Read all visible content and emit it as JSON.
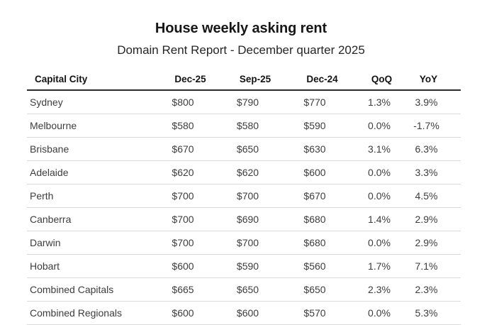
{
  "header": {
    "title": "House weekly asking rent",
    "subtitle": "Domain Rent Report - December quarter 2025"
  },
  "colors": {
    "background": "#ffffff",
    "title_text": "#161616",
    "subtitle_text": "#262626",
    "header_text": "#121212",
    "body_text": "#3d3d3d",
    "header_rule": "#2b2b2b",
    "row_rule": "#d9d9d9"
  },
  "chart_data": {
    "type": "table",
    "title": "House weekly asking rent",
    "subtitle": "Domain Rent Report - December quarter 2025",
    "columns": [
      "Capital City",
      "Dec-25",
      "Sep-25",
      "Dec-24",
      "QoQ",
      "YoY"
    ],
    "rows": [
      [
        "Sydney",
        "$800",
        "$790",
        "$770",
        "1.3%",
        "3.9%"
      ],
      [
        "Melbourne",
        "$580",
        "$580",
        "$590",
        "0.0%",
        "-1.7%"
      ],
      [
        "Brisbane",
        "$670",
        "$650",
        "$630",
        "3.1%",
        "6.3%"
      ],
      [
        "Adelaide",
        "$620",
        "$620",
        "$600",
        "0.0%",
        "3.3%"
      ],
      [
        "Perth",
        "$700",
        "$700",
        "$670",
        "0.0%",
        "4.5%"
      ],
      [
        "Canberra",
        "$700",
        "$690",
        "$680",
        "1.4%",
        "2.9%"
      ],
      [
        "Darwin",
        "$700",
        "$700",
        "$680",
        "0.0%",
        "2.9%"
      ],
      [
        "Hobart",
        "$600",
        "$590",
        "$560",
        "1.7%",
        "7.1%"
      ],
      [
        "Combined Capitals",
        "$665",
        "$650",
        "$650",
        "2.3%",
        "2.3%"
      ],
      [
        "Combined Regionals",
        "$600",
        "$600",
        "$570",
        "0.0%",
        "5.3%"
      ]
    ]
  }
}
